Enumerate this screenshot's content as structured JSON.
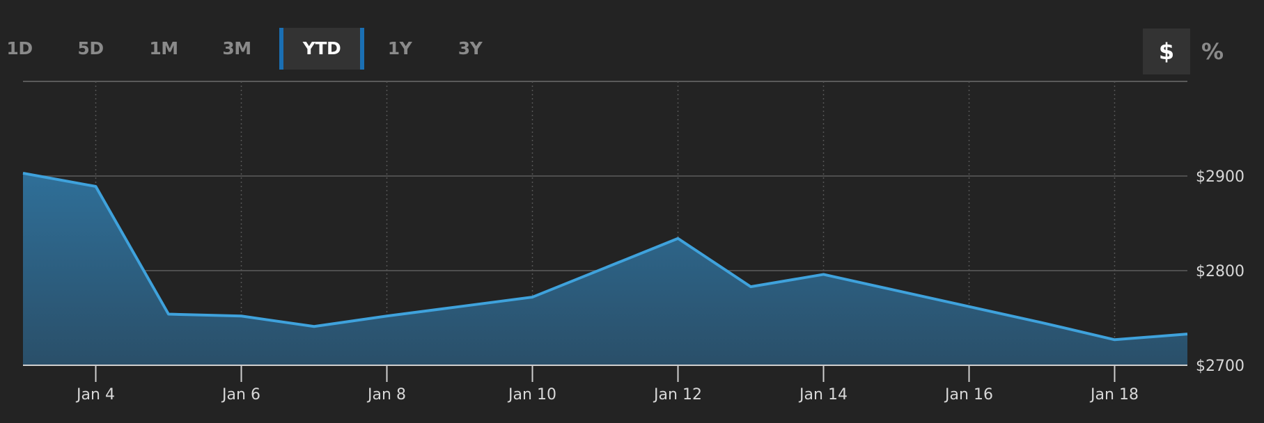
{
  "range_tabs": [
    {
      "label": "1D",
      "active": false
    },
    {
      "label": "5D",
      "active": false
    },
    {
      "label": "1M",
      "active": false
    },
    {
      "label": "3M",
      "active": false
    },
    {
      "label": "YTD",
      "active": true
    },
    {
      "label": "1Y",
      "active": false
    },
    {
      "label": "3Y",
      "active": false
    }
  ],
  "unit_toggle": {
    "dollar_label": "$",
    "percent_label": "%",
    "active": "$"
  },
  "colors": {
    "background": "#232323",
    "line": "#3fa2dc",
    "area_top": "#2f6f98",
    "area_bottom": "#2a4f69",
    "active_tab_border": "#1a6fb3"
  },
  "chart_data": {
    "type": "area",
    "title": "",
    "xlabel": "",
    "ylabel": "",
    "x": [
      "Jan 3",
      "Jan 4",
      "Jan 5",
      "Jan 6",
      "Jan 7",
      "Jan 8",
      "Jan 9",
      "Jan 10",
      "Jan 11",
      "Jan 12",
      "Jan 13",
      "Jan 14",
      "Jan 15",
      "Jan 16",
      "Jan 17",
      "Jan 18",
      "Jan 19"
    ],
    "values": [
      2903,
      2889,
      2754,
      2752,
      2741,
      2752,
      2762,
      2772,
      2803,
      2834,
      2783,
      2796,
      2779,
      2762,
      2745,
      2727,
      2733
    ],
    "x_tick_labels": [
      "Jan 4",
      "Jan 6",
      "Jan 8",
      "Jan 10",
      "Jan 12",
      "Jan 14",
      "Jan 16",
      "Jan 18"
    ],
    "y_tick_labels": [
      "$2700",
      "$2800",
      "$2900"
    ],
    "y_ticks": [
      2700,
      2800,
      2900
    ],
    "ylim": [
      2700,
      3000
    ],
    "y_axis_position": "right",
    "grid": true
  }
}
